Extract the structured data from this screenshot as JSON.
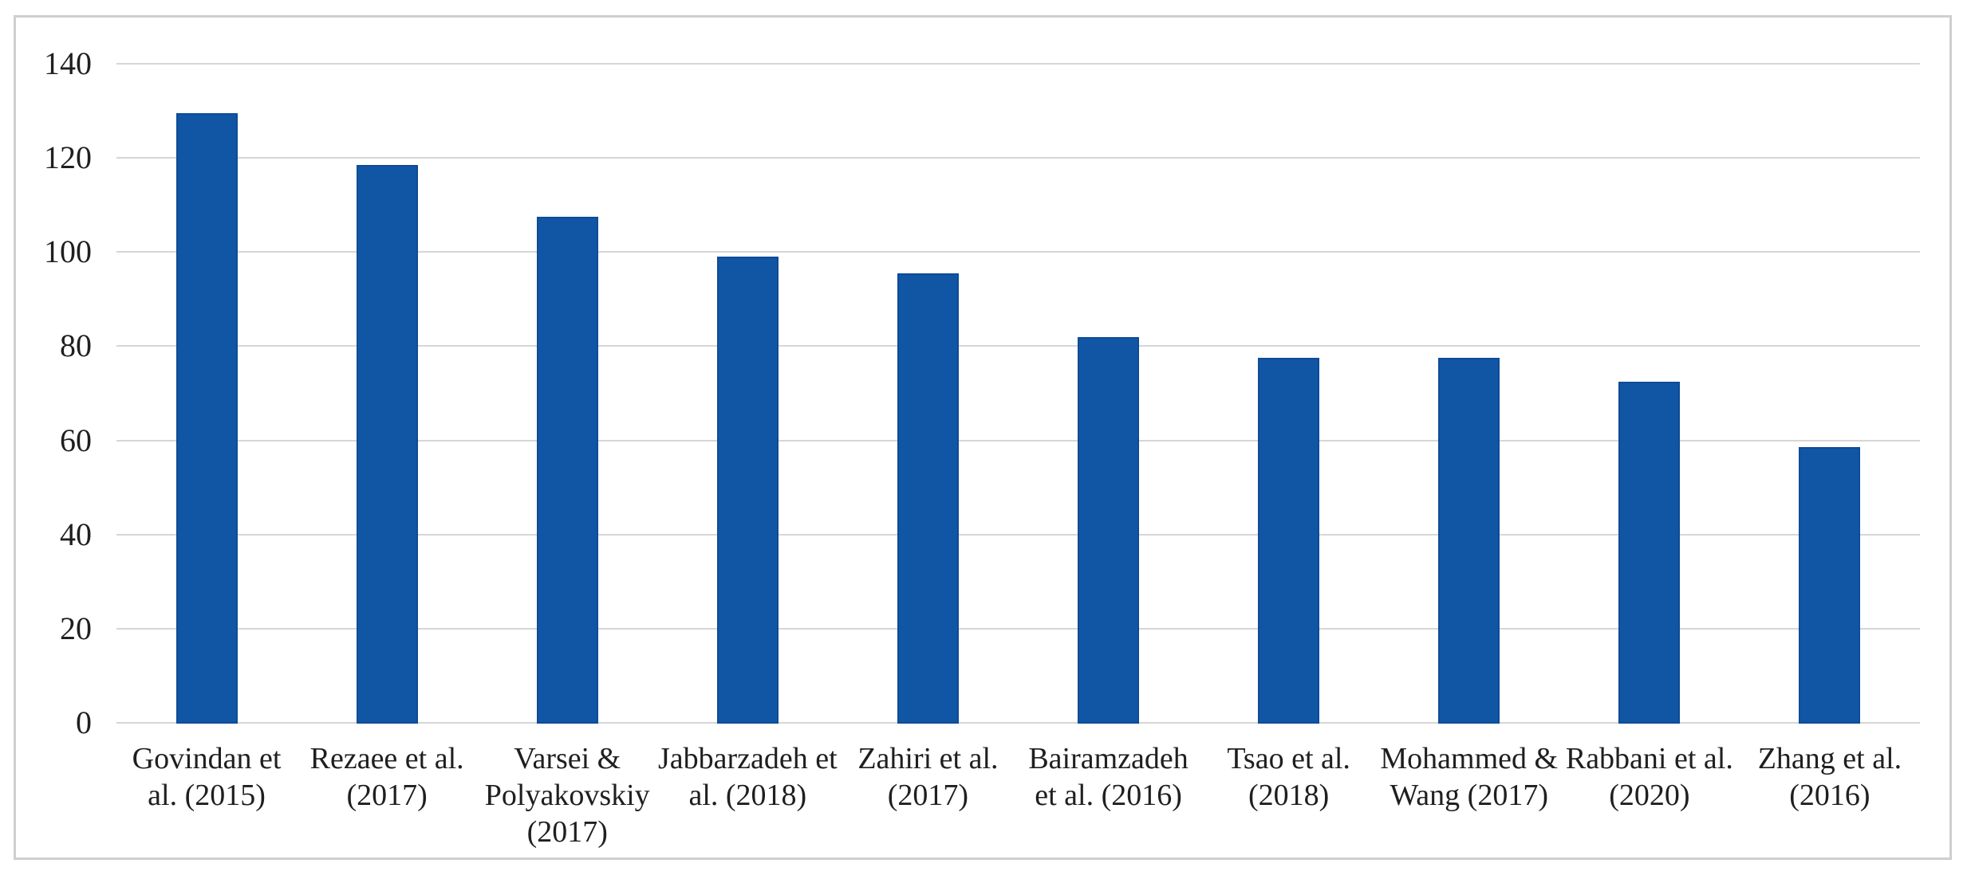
{
  "chart_data": {
    "type": "bar",
    "title": "",
    "xlabel": "",
    "ylabel": "",
    "categories": [
      "Govindan et al. (2015)",
      "Rezaee et al. (2017)",
      "Varsei & Polyakovskiy (2017)",
      "Jabbarzadeh et al. (2018)",
      "Zahiri et al. (2017)",
      "Bairamzadeh et al. (2016)",
      "Tsao et al. (2018)",
      "Mohammed & Wang (2017)",
      "Rabbani et al. (2020)",
      "Zhang et al. (2016)"
    ],
    "category_lines": [
      [
        "Govindan et",
        "al. (2015)"
      ],
      [
        "Rezaee et al.",
        "(2017)"
      ],
      [
        "Varsei &",
        "Polyakovskiy",
        "(2017)"
      ],
      [
        "Jabbarzadeh et",
        "al. (2018)"
      ],
      [
        "Zahiri et al.",
        "(2017)"
      ],
      [
        "Bairamzadeh",
        "et al. (2016)"
      ],
      [
        "Tsao et al.",
        "(2018)"
      ],
      [
        "Mohammed &",
        "Wang (2017)"
      ],
      [
        "Rabbani et al.",
        "(2020)"
      ],
      [
        "Zhang et al.",
        "(2016)"
      ]
    ],
    "values": [
      129.5,
      118.5,
      107.5,
      99,
      95.5,
      82,
      77.5,
      77.5,
      72.5,
      58.5
    ],
    "yticks": [
      0,
      20,
      40,
      60,
      80,
      100,
      120,
      140
    ],
    "ylim": [
      0,
      140
    ],
    "grid": "horizontal",
    "legend": "none",
    "colors": {
      "bar_fill": "#1156A5",
      "bar_border": "#0E4C96",
      "gridline": "#D6D6D6",
      "frame_border": "#CFCFCF",
      "text": "#1F1F1F",
      "background": "#FFFFFF"
    }
  }
}
